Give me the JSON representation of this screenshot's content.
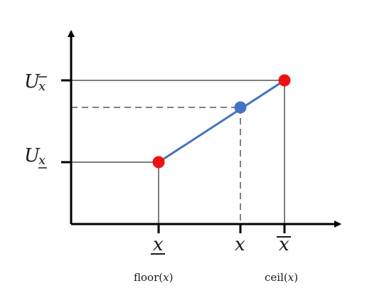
{
  "y_labels": {
    "upper_main": "U",
    "upper_sub": "x",
    "lower_main": "U",
    "lower_sub": "x"
  },
  "x_labels": {
    "floor_symbol": "x",
    "x_symbol": "x",
    "ceil_symbol": "x"
  },
  "bottom_labels": {
    "floor_prefix": "floor(",
    "floor_var": "x",
    "floor_suffix": ")",
    "ceil_prefix": "ceil(",
    "ceil_var": "x",
    "ceil_suffix": ")"
  },
  "colors": {
    "axis": "#000000",
    "guide": "#7f7f7f",
    "segment": "#4472c4",
    "endpoint": "#ee1111",
    "interp_point": "#4472c4"
  }
}
